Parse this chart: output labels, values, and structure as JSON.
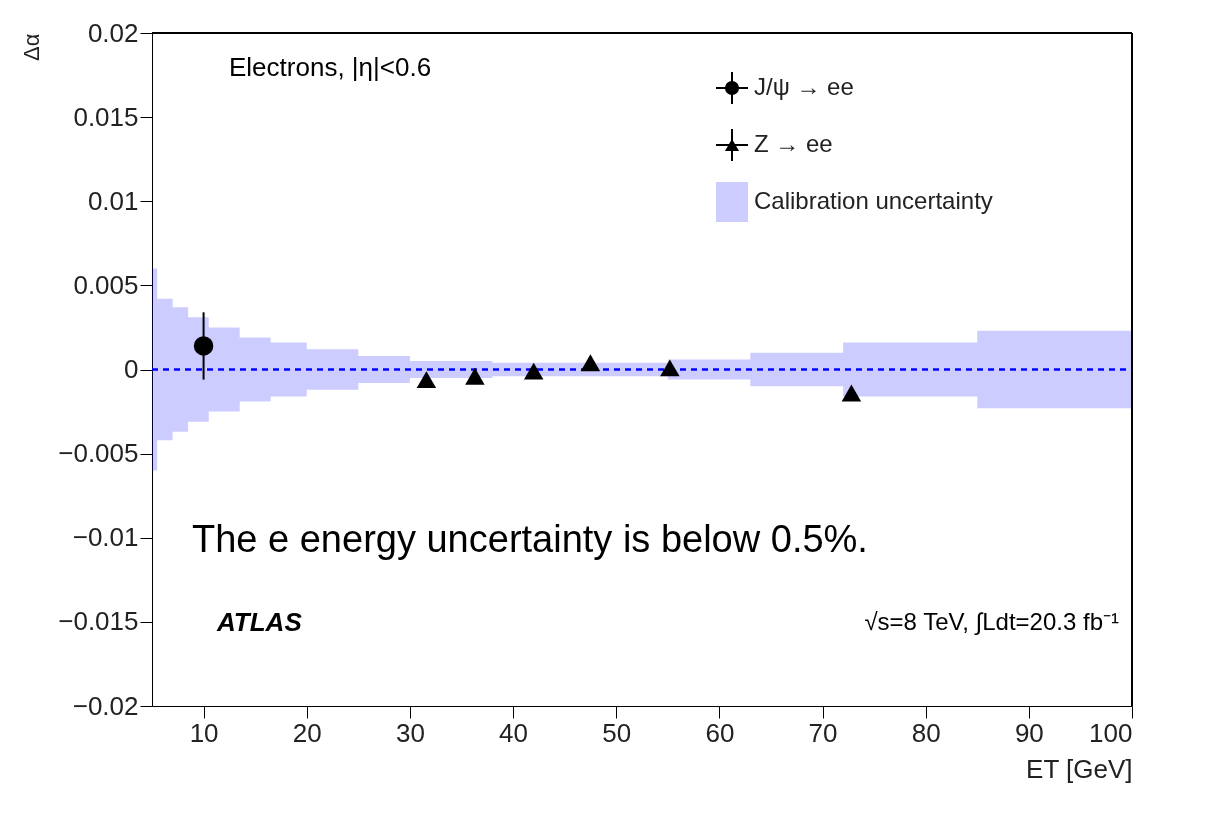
{
  "chart_data": {
    "type": "scatter",
    "xlabel": "ET [GeV]",
    "ylabel": "Δα",
    "xlim": [
      5,
      100
    ],
    "ylim": [
      -0.02,
      0.02
    ],
    "xticks": [
      10,
      20,
      30,
      40,
      50,
      60,
      70,
      80,
      90,
      100
    ],
    "yticks": [
      -0.02,
      -0.015,
      -0.01,
      -0.005,
      0,
      0.005,
      0.01,
      0.015,
      0.02
    ],
    "grid": false,
    "legend": "top right",
    "series": [
      {
        "name": "J/ψ → ee",
        "marker": "circle",
        "color": "#000000",
        "x": [
          10
        ],
        "values": [
          0.0014
        ],
        "errors": [
          0.002
        ]
      },
      {
        "name": "Z → ee",
        "marker": "triangle",
        "color": "#000000",
        "x": [
          31.6,
          36.3,
          42.0,
          47.5,
          55.2,
          72.8
        ],
        "values": [
          -0.0006,
          -0.0004,
          -0.0001,
          0.0004,
          0.0001,
          -0.0014
        ]
      },
      {
        "name": "Calibration uncertainty",
        "type": "step",
        "color": "#0000ff",
        "line_style": "dashed",
        "x": [
          5,
          5.5,
          7,
          8.5,
          10.5,
          13.5,
          16.5,
          20,
          25,
          30,
          38,
          50,
          55,
          63,
          72,
          85,
          100
        ],
        "values": [
          0,
          0,
          0,
          0,
          0,
          0,
          0,
          0,
          0,
          0,
          0,
          0,
          0,
          0,
          0,
          0,
          0
        ],
        "lower": [
          -0.006,
          -0.0042,
          -0.0037,
          -0.0031,
          -0.0025,
          -0.0019,
          -0.0016,
          -0.0012,
          -0.0008,
          -0.0005,
          -0.0004,
          -0.0004,
          -0.0006,
          -0.001,
          -0.0016,
          -0.0023,
          -0.0031
        ],
        "upper": [
          0.006,
          0.0042,
          0.0037,
          0.0031,
          0.0025,
          0.0019,
          0.0016,
          0.0012,
          0.0008,
          0.0005,
          0.0004,
          0.0004,
          0.0006,
          0.001,
          0.0016,
          0.0023,
          0.0031
        ]
      }
    ],
    "annotations": [
      "Electrons, |η|<0.6",
      "ATLAS",
      "√s=8 TeV, ∫Ldt=20.3 fb⁻¹",
      "The e energy uncertainty is below 0.5%."
    ]
  }
}
